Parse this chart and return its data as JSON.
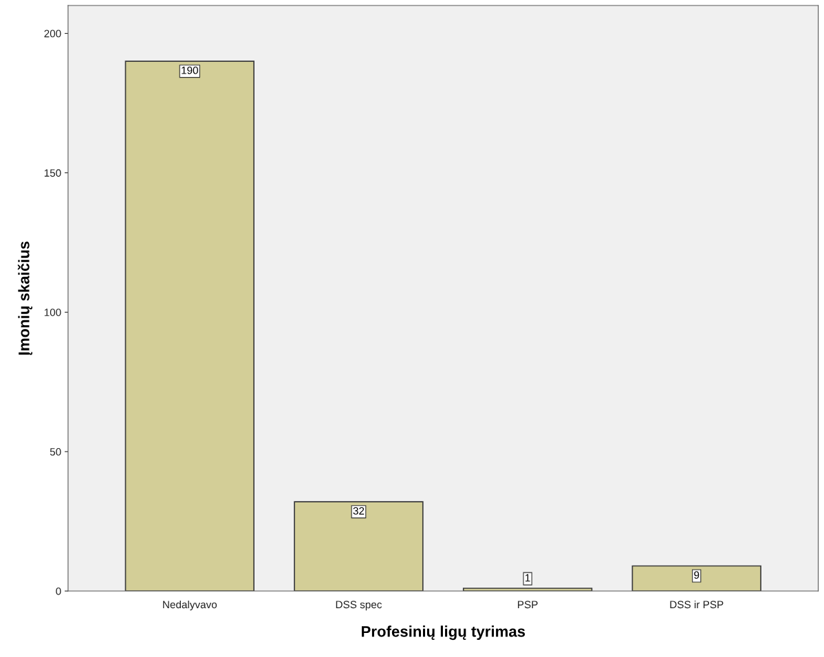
{
  "chart_data": {
    "type": "bar",
    "xlabel": "Profesinių ligų tyrimas",
    "ylabel": "Įmonių skaičius",
    "categories": [
      "Nedalyvavo",
      "DSS spec",
      "PSP",
      "DSS ir PSP"
    ],
    "values": [
      190,
      32,
      1,
      9
    ],
    "color": "#d3ce97",
    "ylim": [
      0,
      210
    ],
    "yticks": [
      0,
      50,
      100,
      150,
      200
    ],
    "grid": false,
    "data_labels": true
  }
}
